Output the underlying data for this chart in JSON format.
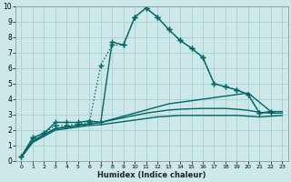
{
  "xlabel": "Humidex (Indice chaleur)",
  "background_color": "#cce8e8",
  "grid_color": "#aacece",
  "line_color": "#006666",
  "xlim": [
    -0.5,
    23.5
  ],
  "ylim": [
    0,
    10
  ],
  "xticks": [
    0,
    1,
    2,
    3,
    4,
    5,
    6,
    7,
    8,
    9,
    10,
    11,
    12,
    13,
    14,
    15,
    16,
    17,
    18,
    19,
    20,
    21,
    22,
    23
  ],
  "yticks": [
    0,
    1,
    2,
    3,
    4,
    5,
    6,
    7,
    8,
    9,
    10
  ],
  "series": [
    {
      "x": [
        0,
        1,
        2,
        3,
        4,
        5,
        6,
        7,
        8,
        9,
        10,
        11,
        12,
        13,
        14,
        15,
        16,
        17,
        18,
        19,
        20,
        21,
        22
      ],
      "y": [
        0.3,
        1.5,
        1.8,
        2.5,
        2.5,
        2.5,
        2.6,
        2.5,
        7.7,
        7.5,
        9.3,
        9.9,
        9.3,
        8.5,
        7.8,
        7.3,
        6.7,
        5.0,
        4.8,
        4.6,
        4.3,
        3.1,
        3.2
      ],
      "marker": "+",
      "markersize": 4,
      "linewidth": 1.0,
      "dotted": false
    },
    {
      "x": [
        0,
        1,
        2,
        3,
        4,
        5,
        6,
        7,
        8,
        9,
        10,
        11,
        12,
        13,
        14,
        15,
        16,
        17,
        18,
        19,
        20,
        21,
        22
      ],
      "y": [
        0.3,
        1.5,
        1.8,
        2.3,
        2.3,
        2.4,
        2.5,
        6.2,
        7.5,
        7.5,
        9.3,
        9.9,
        9.3,
        8.5,
        7.8,
        7.3,
        6.7,
        5.0,
        4.8,
        4.6,
        4.3,
        3.1,
        3.2
      ],
      "marker": "+",
      "markersize": 4,
      "linewidth": 1.0,
      "dotted": true
    },
    {
      "x": [
        0,
        1,
        2,
        3,
        4,
        5,
        6,
        7,
        8,
        9,
        10,
        11,
        12,
        13,
        14,
        15,
        16,
        17,
        18,
        19,
        20,
        21,
        22,
        23
      ],
      "y": [
        0.25,
        1.3,
        1.7,
        2.1,
        2.2,
        2.3,
        2.4,
        2.5,
        2.7,
        2.9,
        3.1,
        3.3,
        3.5,
        3.7,
        3.8,
        3.9,
        4.0,
        4.1,
        4.2,
        4.3,
        4.4,
        3.8,
        3.2,
        3.2
      ],
      "marker": null,
      "markersize": 0,
      "linewidth": 1.0,
      "dotted": false
    },
    {
      "x": [
        0,
        1,
        2,
        3,
        4,
        5,
        6,
        7,
        8,
        9,
        10,
        11,
        12,
        13,
        14,
        15,
        16,
        17,
        18,
        19,
        20,
        21,
        22,
        23
      ],
      "y": [
        0.25,
        1.3,
        1.7,
        2.1,
        2.2,
        2.3,
        2.4,
        2.5,
        2.65,
        2.8,
        2.95,
        3.1,
        3.2,
        3.3,
        3.35,
        3.38,
        3.4,
        3.4,
        3.4,
        3.35,
        3.28,
        3.15,
        3.1,
        3.1
      ],
      "marker": null,
      "markersize": 0,
      "linewidth": 1.0,
      "dotted": false
    },
    {
      "x": [
        0,
        1,
        2,
        3,
        4,
        5,
        6,
        7,
        8,
        9,
        10,
        11,
        12,
        13,
        14,
        15,
        16,
        17,
        18,
        19,
        20,
        21,
        22,
        23
      ],
      "y": [
        0.25,
        1.2,
        1.6,
        2.0,
        2.1,
        2.2,
        2.3,
        2.35,
        2.45,
        2.55,
        2.65,
        2.75,
        2.85,
        2.9,
        2.95,
        2.95,
        2.95,
        2.95,
        2.95,
        2.95,
        2.9,
        2.85,
        2.9,
        2.95
      ],
      "marker": null,
      "markersize": 0,
      "linewidth": 1.0,
      "dotted": false
    }
  ]
}
